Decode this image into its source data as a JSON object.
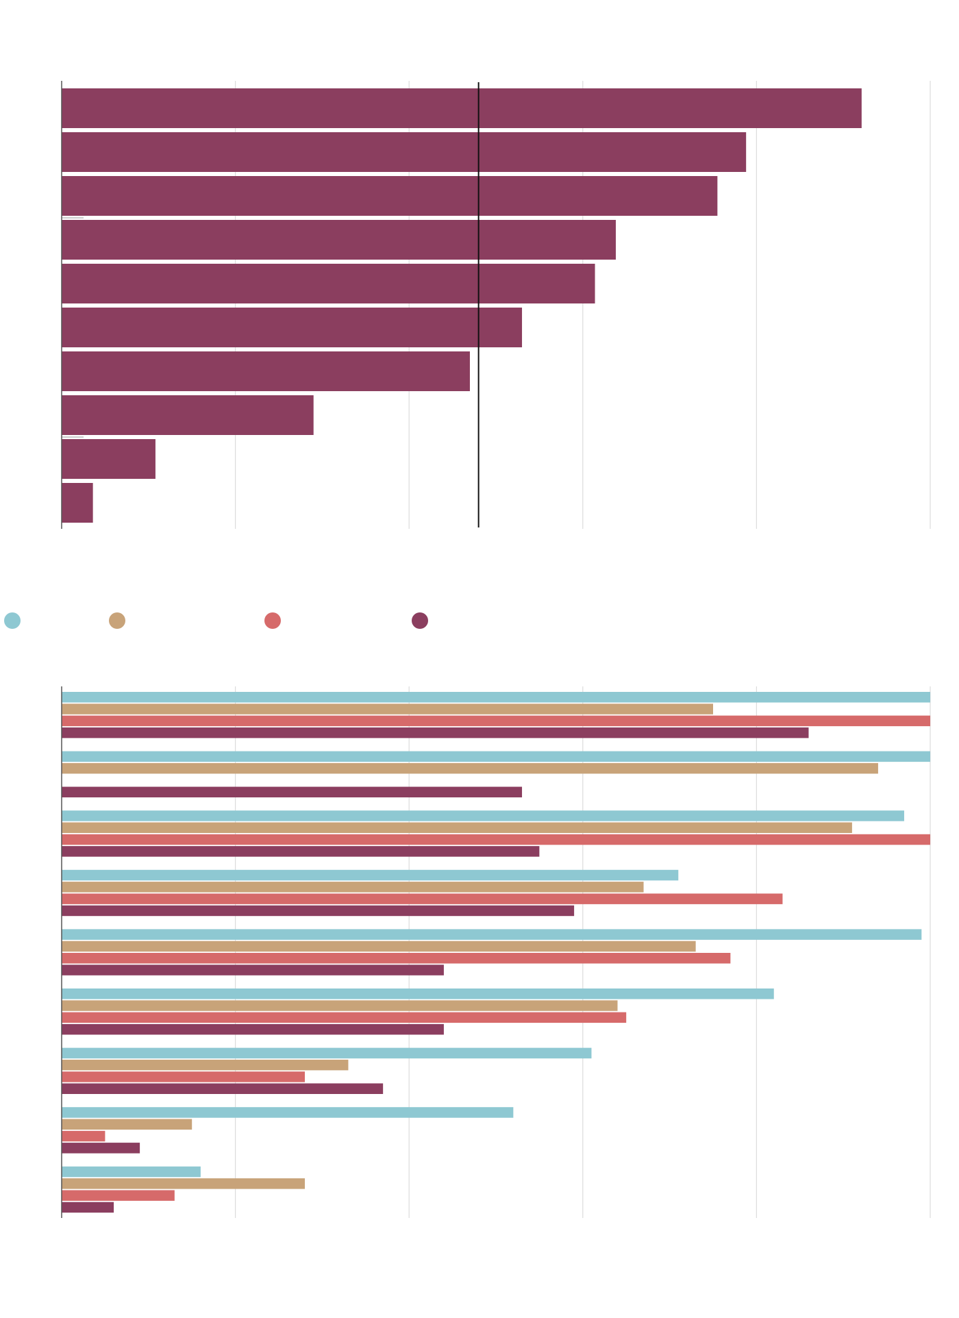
{
  "charts": [
    {
      "chart_data": {
        "type": "bar",
        "orientation": "horizontal",
        "title": "",
        "xlabel": "",
        "ylabel": "",
        "xlim": [
          0,
          100
        ],
        "grid": true,
        "color": "#8b3e5f",
        "categories": [
          "",
          "",
          "",
          "",
          "",
          "",
          "",
          "",
          "",
          ""
        ],
        "values": [
          92.1,
          78.8,
          75.5,
          63.8,
          61.4,
          53.0,
          47.0,
          29.0,
          10.8,
          3.6
        ],
        "reference_line": 48.0,
        "category_separators_after": [
          2,
          7
        ]
      }
    },
    {
      "legend": [
        {
          "name": "",
          "color": "#8ec8d2"
        },
        {
          "name": "",
          "color": "#c8a379"
        },
        {
          "name": "",
          "color": "#d66a6a"
        },
        {
          "name": "",
          "color": "#8b3e5f"
        }
      ],
      "chart_data": {
        "type": "bar",
        "orientation": "horizontal",
        "title": "",
        "xlabel": "",
        "ylabel": "",
        "xlim": [
          0,
          100
        ],
        "grid": true,
        "categories": [
          "",
          "",
          "",
          "",
          "",
          "",
          "",
          "",
          "",
          ""
        ],
        "series": [
          {
            "name": "",
            "color": "#8ec8d2",
            "values": [
              100,
              100,
              97,
              71,
              99,
              82,
              61,
              52,
              16,
              null
            ]
          },
          {
            "name": "",
            "color": "#c8a379",
            "values": [
              75,
              94,
              91,
              67,
              73,
              64,
              33,
              15,
              28,
              null
            ]
          },
          {
            "name": "",
            "color": "#d66a6a",
            "values": [
              100,
              null,
              100,
              83,
              77,
              65,
              28,
              5,
              13,
              null
            ]
          },
          {
            "name": "",
            "color": "#8b3e5f",
            "values": [
              86,
              53,
              55,
              59,
              44,
              44,
              37,
              9,
              6,
              null
            ]
          }
        ]
      }
    }
  ]
}
